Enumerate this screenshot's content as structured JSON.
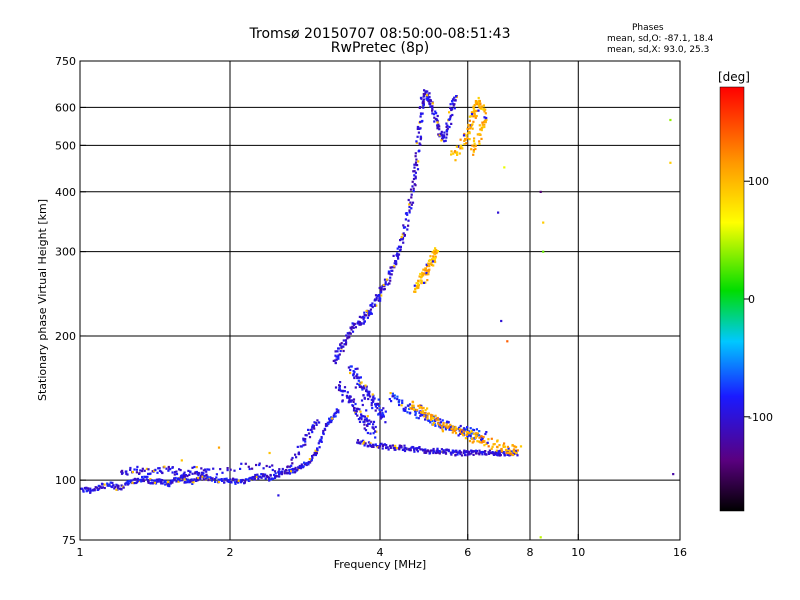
{
  "header": {
    "title_line1": "Tromsø 20150707 08:50:00-08:51:43",
    "title_line2": "RwPretec (8p)",
    "phases_title": "Phases",
    "phases_o": "mean, sd,O: -87.1, 18.4",
    "phases_x": "mean, sd,X:  93.0, 25.3"
  },
  "chart_data": {
    "type": "scatter",
    "title": "Tromsø 20150707 08:50:00-08:51:43",
    "subtitle": "RwPretec (8p)",
    "xlabel": "Frequency [MHz]",
    "ylabel": "Stationary phase Virtual Height [km]",
    "xscale": "log",
    "yscale": "log",
    "xlim": [
      1,
      16
    ],
    "ylim": [
      75,
      750
    ],
    "xticks": [
      1,
      2,
      4,
      6,
      8,
      10,
      16
    ],
    "xtick_labels": [
      "1",
      "2",
      "4",
      "6",
      "8",
      "10",
      "16"
    ],
    "yticks": [
      75,
      100,
      200,
      300,
      400,
      500,
      600,
      750
    ],
    "ytick_labels": [
      "75",
      "100",
      "200",
      "300",
      "400",
      "500",
      "600",
      "750"
    ],
    "xgrid": [
      2,
      4,
      6,
      8,
      10
    ],
    "ygrid": [
      100,
      200,
      300,
      400,
      500,
      600
    ],
    "grid": true,
    "colorbar": {
      "label": "[deg]",
      "range": [
        -180,
        180
      ],
      "ticks": [
        100,
        0,
        -100
      ],
      "tick_labels": [
        "100",
        "0",
        "-100"
      ]
    },
    "traces": [
      {
        "name": "",
        "phase": -95,
        "spread": 0.012,
        "points": [
          [
            1.0,
            96
          ],
          [
            1.05,
            95
          ],
          [
            1.1,
            97
          ],
          [
            1.15,
            98
          ],
          [
            1.2,
            96
          ],
          [
            1.25,
            99
          ],
          [
            1.3,
            100
          ],
          [
            1.35,
            101
          ],
          [
            1.4,
            99
          ],
          [
            1.45,
            100
          ],
          [
            1.5,
            98
          ],
          [
            1.55,
            100
          ],
          [
            1.6,
            101
          ],
          [
            1.65,
            99
          ],
          [
            1.7,
            100
          ],
          [
            1.75,
            102
          ],
          [
            1.8,
            101
          ],
          [
            1.9,
            100
          ],
          [
            2.0,
            100
          ],
          [
            2.1,
            99
          ],
          [
            2.2,
            101
          ],
          [
            2.3,
            102
          ],
          [
            2.4,
            101
          ],
          [
            2.5,
            103
          ],
          [
            2.6,
            104
          ],
          [
            2.7,
            105
          ],
          [
            2.8,
            107
          ],
          [
            2.9,
            110
          ],
          [
            3.0,
            116
          ],
          [
            3.1,
            128
          ],
          [
            3.2,
            135
          ],
          [
            3.3,
            140
          ]
        ]
      },
      {
        "name": "",
        "phase": -100,
        "spread": 0.018,
        "points": [
          [
            1.2,
            103
          ],
          [
            1.3,
            105
          ],
          [
            1.4,
            104
          ],
          [
            1.5,
            106
          ],
          [
            1.6,
            103
          ],
          [
            1.7,
            105
          ],
          [
            1.8,
            104
          ],
          [
            2.2,
            107
          ],
          [
            2.6,
            106
          ],
          [
            2.8,
            118
          ],
          [
            2.9,
            127
          ],
          [
            3.0,
            133
          ]
        ]
      },
      {
        "name": "",
        "phase": -100,
        "spread": 0.02,
        "points": [
          [
            3.25,
            175
          ],
          [
            3.3,
            185
          ],
          [
            3.4,
            195
          ],
          [
            3.5,
            205
          ],
          [
            3.6,
            212
          ],
          [
            3.7,
            218
          ],
          [
            3.8,
            225
          ],
          [
            3.9,
            235
          ],
          [
            4.0,
            245
          ],
          [
            4.1,
            255
          ],
          [
            4.2,
            270
          ],
          [
            4.3,
            290
          ],
          [
            4.4,
            310
          ],
          [
            4.5,
            340
          ],
          [
            4.6,
            380
          ],
          [
            4.7,
            430
          ],
          [
            4.75,
            480
          ],
          [
            4.8,
            540
          ],
          [
            4.85,
            600
          ],
          [
            4.9,
            640
          ],
          [
            5.0,
            630
          ],
          [
            5.1,
            600
          ],
          [
            5.2,
            560
          ],
          [
            5.3,
            520
          ],
          [
            5.4,
            520
          ],
          [
            5.5,
            560
          ],
          [
            5.6,
            610
          ],
          [
            5.7,
            640
          ]
        ]
      },
      {
        "name": "",
        "phase": -95,
        "spread": 0.03,
        "points": [
          [
            3.3,
            160
          ],
          [
            3.4,
            150
          ],
          [
            3.5,
            145
          ],
          [
            3.6,
            140
          ],
          [
            3.7,
            135
          ],
          [
            3.8,
            130
          ],
          [
            3.9,
            125
          ],
          [
            3.5,
            170
          ],
          [
            3.6,
            165
          ],
          [
            3.7,
            155
          ],
          [
            3.8,
            150
          ],
          [
            3.9,
            145
          ],
          [
            4.0,
            140
          ],
          [
            4.1,
            135
          ]
        ]
      },
      {
        "name": "",
        "phase": -100,
        "spread": 0.012,
        "points": [
          [
            3.6,
            120
          ],
          [
            3.8,
            119
          ],
          [
            4.0,
            118
          ],
          [
            4.2,
            117
          ],
          [
            4.4,
            117
          ],
          [
            4.6,
            116
          ],
          [
            4.8,
            116
          ],
          [
            5.0,
            115
          ],
          [
            5.2,
            115
          ],
          [
            5.4,
            115
          ],
          [
            5.6,
            114
          ],
          [
            5.8,
            114
          ],
          [
            6.0,
            114
          ],
          [
            6.2,
            114
          ],
          [
            6.5,
            114
          ],
          [
            6.8,
            114
          ],
          [
            7.0,
            114
          ],
          [
            7.3,
            114
          ],
          [
            7.6,
            114
          ]
        ]
      },
      {
        "name": "",
        "phase": -80,
        "spread": 0.025,
        "points": [
          [
            4.2,
            150
          ],
          [
            4.4,
            145
          ],
          [
            4.6,
            140
          ],
          [
            4.8,
            137
          ],
          [
            5.0,
            135
          ],
          [
            5.2,
            132
          ],
          [
            5.4,
            130
          ],
          [
            5.6,
            128
          ],
          [
            5.8,
            127
          ],
          [
            6.0,
            126
          ],
          [
            6.2,
            125
          ],
          [
            6.5,
            124
          ]
        ]
      },
      {
        "name": "",
        "phase": 110,
        "spread": 0.025,
        "points": [
          [
            4.6,
            145
          ],
          [
            4.8,
            140
          ],
          [
            5.0,
            137
          ],
          [
            5.2,
            133
          ],
          [
            5.5,
            128
          ],
          [
            5.8,
            126
          ],
          [
            6.0,
            124
          ],
          [
            6.3,
            122
          ],
          [
            6.6,
            120
          ],
          [
            7.0,
            117
          ],
          [
            7.3,
            116
          ],
          [
            7.6,
            115
          ]
        ]
      },
      {
        "name": "",
        "phase": 105,
        "spread": 0.025,
        "points": [
          [
            5.6,
            470
          ],
          [
            5.8,
            500
          ],
          [
            6.0,
            530
          ],
          [
            6.1,
            560
          ],
          [
            6.2,
            590
          ],
          [
            6.3,
            620
          ],
          [
            6.4,
            600
          ],
          [
            6.5,
            560
          ],
          [
            6.3,
            520
          ],
          [
            6.1,
            480
          ]
        ]
      },
      {
        "name": "",
        "phase": 100,
        "spread": 0.02,
        "points": [
          [
            4.7,
            250
          ],
          [
            4.8,
            260
          ],
          [
            4.9,
            270
          ],
          [
            5.0,
            280
          ],
          [
            5.1,
            290
          ],
          [
            5.2,
            300
          ],
          [
            4.9,
            255
          ]
        ]
      }
    ],
    "isolated_points": [
      {
        "x": 8.4,
        "y": 400,
        "phase": -140
      },
      {
        "x": 8.5,
        "y": 345,
        "phase": 90
      },
      {
        "x": 8.5,
        "y": 300,
        "phase": 30
      },
      {
        "x": 7.0,
        "y": 215,
        "phase": -100
      },
      {
        "x": 7.2,
        "y": 195,
        "phase": 140
      },
      {
        "x": 7.1,
        "y": 450,
        "phase": 60
      },
      {
        "x": 6.9,
        "y": 362,
        "phase": -100
      },
      {
        "x": 8.4,
        "y": 76,
        "phase": 50
      },
      {
        "x": 15.3,
        "y": 565,
        "phase": 40
      },
      {
        "x": 15.3,
        "y": 460,
        "phase": 90
      },
      {
        "x": 15.5,
        "y": 103,
        "phase": -120
      },
      {
        "x": 2.5,
        "y": 93,
        "phase": -95
      },
      {
        "x": 1.6,
        "y": 110,
        "phase": 95
      },
      {
        "x": 1.9,
        "y": 117,
        "phase": 110
      },
      {
        "x": 2.4,
        "y": 114,
        "phase": 95
      }
    ]
  }
}
